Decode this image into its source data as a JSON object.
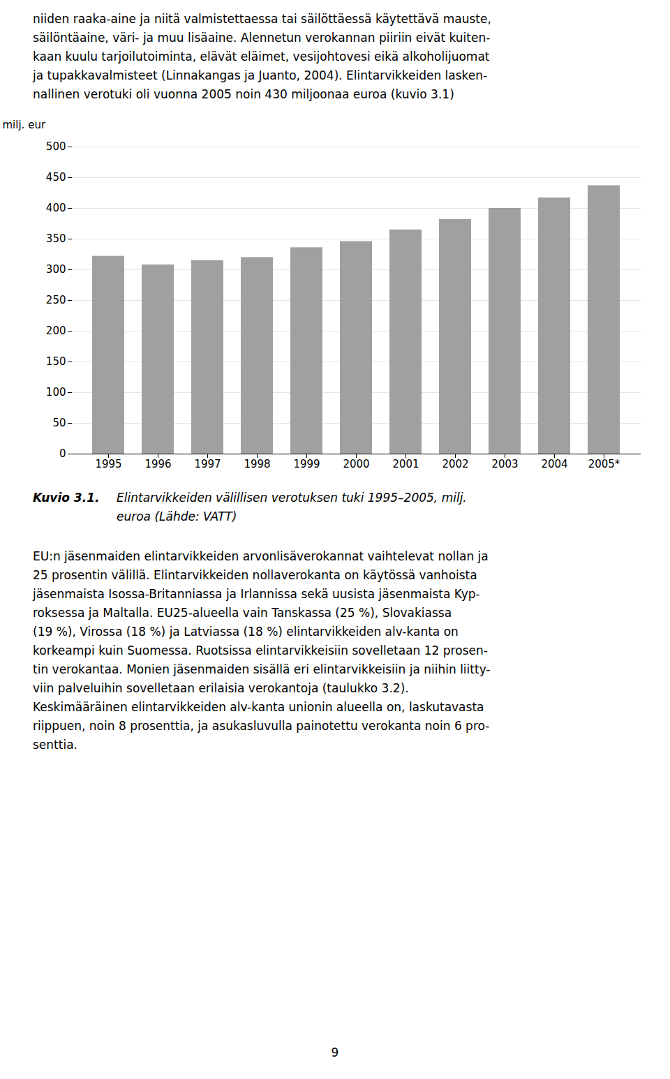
{
  "chart_data": {
    "type": "bar",
    "categories": [
      "1995",
      "1996",
      "1997",
      "1998",
      "1999",
      "2000",
      "2001",
      "2002",
      "2003",
      "2004",
      "2005*"
    ],
    "values": [
      322,
      308,
      315,
      320,
      336,
      346,
      365,
      382,
      400,
      417,
      437
    ],
    "color": "#a0a0a0",
    "ylabel": "milj. eur",
    "ylim": [
      0,
      500
    ],
    "yticks": [
      0,
      50,
      100,
      150,
      200,
      250,
      300,
      350,
      400,
      450,
      500
    ],
    "grid": true
  },
  "text_above": [
    "niiden raaka-aine ja niitä valmistettaessa tai säilöttäessä käytettävä mauste,",
    "säilöntäaine, väri- ja muu lisäaine. Alennetun verokannan piiriin eivät kuiten-",
    "kaan kuulu tarjoilutoiminta, elävät eläimet, vesijohtovesi eikä alkoholijuomat",
    "ja tupakkavalmisteet (Linnakangas ja Juanto, 2004). Elintarvikkeiden lasken-",
    "nallinen verotuki oli vuonna 2005 noin 430 miljoonaa euroa (kuvio 3.1)"
  ],
  "caption": {
    "label": "Kuvio 3.1.",
    "lines": [
      "Elintarvikkeiden välillisen verotuksen tuki 1995–2005, milj.",
      "euroa (Lähde: VATT)"
    ]
  },
  "text_below": [
    "EU:n jäsenmaiden elintarvikkeiden arvonlisäverokannat vaihtelevat nollan ja",
    "25 prosentin välillä. Elintarvikkeiden nollaverokanta on käytössä vanhoista",
    "jäsenmaista Isossa-Britanniassa ja Irlannissa sekä uusista jäsenmaista Kyp-",
    "roksessa ja Maltalla. EU25-alueella vain Tanskassa (25 %), Slovakiassa",
    "(19 %), Virossa (18 %) ja Latviassa (18 %) elintarvikkeiden alv-kanta on",
    "korkeampi kuin Suomessa. Ruotsissa elintarvikkeisiin sovelletaan 12 prosen-",
    "tin verokantaa. Monien jäsenmaiden sisällä eri elintarvikkeisiin ja niihin liitty-",
    "viin palveluihin sovelletaan erilaisia verokantoja (taulukko 3.2).",
    "Keskimääräinen elintarvikkeiden alv-kanta unionin alueella on, laskutavasta",
    "riippuen, noin 8 prosenttia, ja asukasluvulla painotettu verokanta noin 6 pro-",
    "senttia."
  ],
  "page_number": "9"
}
